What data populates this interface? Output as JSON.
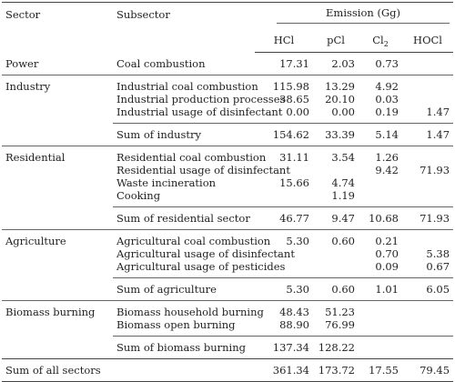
{
  "header": {
    "sector": "Sector",
    "subsector": "Subsector",
    "emission": "Emission (Gg)",
    "hcl": "HCl",
    "pcl": "pCl",
    "cl2_base": "Cl",
    "cl2_sub": "2",
    "hocl": "HOCl"
  },
  "groups": [
    {
      "sector": "Power",
      "rows": [
        {
          "sub": "Coal combustion",
          "hcl": "17.31",
          "pcl": "2.03",
          "cl2": "0.73",
          "hocl": ""
        }
      ]
    },
    {
      "sector": "Industry",
      "rows": [
        {
          "sub": "Industrial coal combustion",
          "hcl": "115.98",
          "pcl": "13.29",
          "cl2": "4.92",
          "hocl": ""
        },
        {
          "sub": "Industrial production processes",
          "hcl": "38.65",
          "pcl": "20.10",
          "cl2": "0.03",
          "hocl": ""
        },
        {
          "sub": "Industrial usage of disinfectant",
          "hcl": "0.00",
          "pcl": "0.00",
          "cl2": "0.19",
          "hocl": "1.47"
        }
      ],
      "sum": {
        "label": "Sum of industry",
        "hcl": "154.62",
        "pcl": "33.39",
        "cl2": "5.14",
        "hocl": "1.47"
      }
    },
    {
      "sector": "Residential",
      "rows": [
        {
          "sub": "Residential coal combustion",
          "hcl": "31.11",
          "pcl": "3.54",
          "cl2": "1.26",
          "hocl": ""
        },
        {
          "sub": "Residential usage of disinfectant",
          "hcl": "",
          "pcl": "",
          "cl2": "9.42",
          "hocl": "71.93"
        },
        {
          "sub": "Waste incineration",
          "hcl": "15.66",
          "pcl": "4.74",
          "cl2": "",
          "hocl": ""
        },
        {
          "sub": "Cooking",
          "hcl": "",
          "pcl": "1.19",
          "cl2": "",
          "hocl": ""
        }
      ],
      "sum": {
        "label": "Sum of residential sector",
        "hcl": "46.77",
        "pcl": "9.47",
        "cl2": "10.68",
        "hocl": "71.93"
      }
    },
    {
      "sector": "Agriculture",
      "rows": [
        {
          "sub": "Agricultural coal combustion",
          "hcl": "5.30",
          "pcl": "0.60",
          "cl2": "0.21",
          "hocl": ""
        },
        {
          "sub": "Agricultural usage of disinfectant",
          "hcl": "",
          "pcl": "",
          "cl2": "0.70",
          "hocl": "5.38"
        },
        {
          "sub": "Agricultural usage of pesticides",
          "hcl": "",
          "pcl": "",
          "cl2": "0.09",
          "hocl": "0.67"
        }
      ],
      "sum": {
        "label": "Sum of agriculture",
        "hcl": "5.30",
        "pcl": "0.60",
        "cl2": "1.01",
        "hocl": "6.05"
      }
    },
    {
      "sector": "Biomass burning",
      "rows": [
        {
          "sub": "Biomass household burning",
          "hcl": "48.43",
          "pcl": "51.23",
          "cl2": "",
          "hocl": ""
        },
        {
          "sub": "Biomass open burning",
          "hcl": "88.90",
          "pcl": "76.99",
          "cl2": "",
          "hocl": ""
        }
      ],
      "sum": {
        "label": "Sum of biomass burning",
        "hcl": "137.34",
        "pcl": "128.22",
        "cl2": "",
        "hocl": ""
      }
    }
  ],
  "total": {
    "label": "Sum of all sectors",
    "hcl": "361.34",
    "pcl": "173.72",
    "cl2": "17.55",
    "hocl": "79.45"
  }
}
